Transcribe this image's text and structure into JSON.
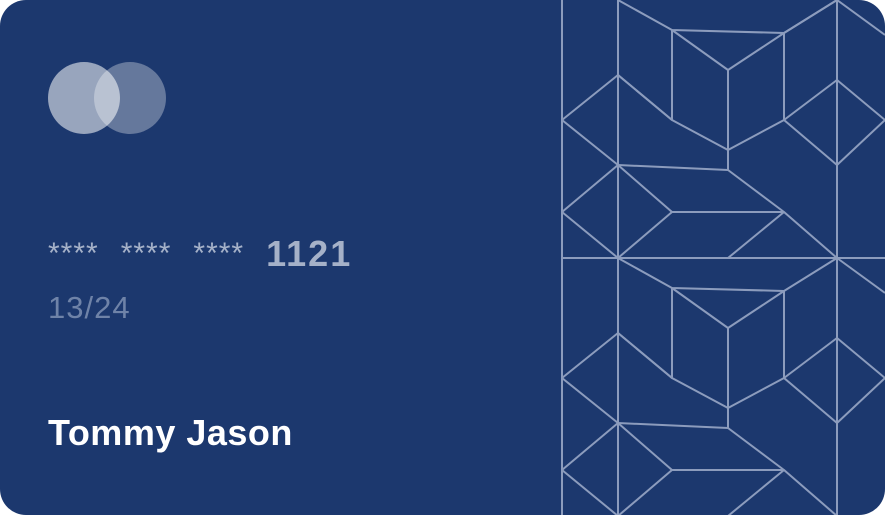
{
  "card": {
    "background_color": "#1c386e",
    "pattern_color": "#8c9cbd",
    "brand_icon": "card-network-logo-icon",
    "number_masked_groups": [
      "****",
      "****",
      "****"
    ],
    "number_last4": "1121",
    "expiry": "13/24",
    "holder_name": "Tommy Jason"
  }
}
